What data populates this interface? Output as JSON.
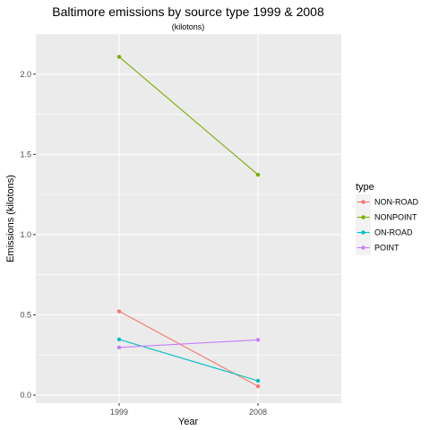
{
  "chart_data": {
    "type": "line",
    "title": "Baltimore emissions by source type 1999 & 2008",
    "subtitle": "(kilotons)",
    "xlabel": "Year",
    "ylabel": "Emissions (kilotons)",
    "x": [
      "1999",
      "2008"
    ],
    "ylim": [
      -0.05,
      2.25
    ],
    "yticks": [
      "0.0",
      "0.5",
      "1.0",
      "1.5",
      "2.0"
    ],
    "ytick_values": [
      0,
      0.5,
      1.0,
      1.5,
      2.0
    ],
    "grid": true,
    "legend": {
      "title": "type",
      "position": "right"
    },
    "series": [
      {
        "name": "NON-ROAD",
        "color": "#F8766D",
        "values": [
          0.522,
          0.055
        ]
      },
      {
        "name": "NONPOINT",
        "color": "#7CAE00",
        "values": [
          2.108,
          1.373
        ]
      },
      {
        "name": "ON-ROAD",
        "color": "#00BFC4",
        "values": [
          0.347,
          0.089
        ]
      },
      {
        "name": "POINT",
        "color": "#C77CFF",
        "values": [
          0.297,
          0.344
        ]
      }
    ]
  }
}
